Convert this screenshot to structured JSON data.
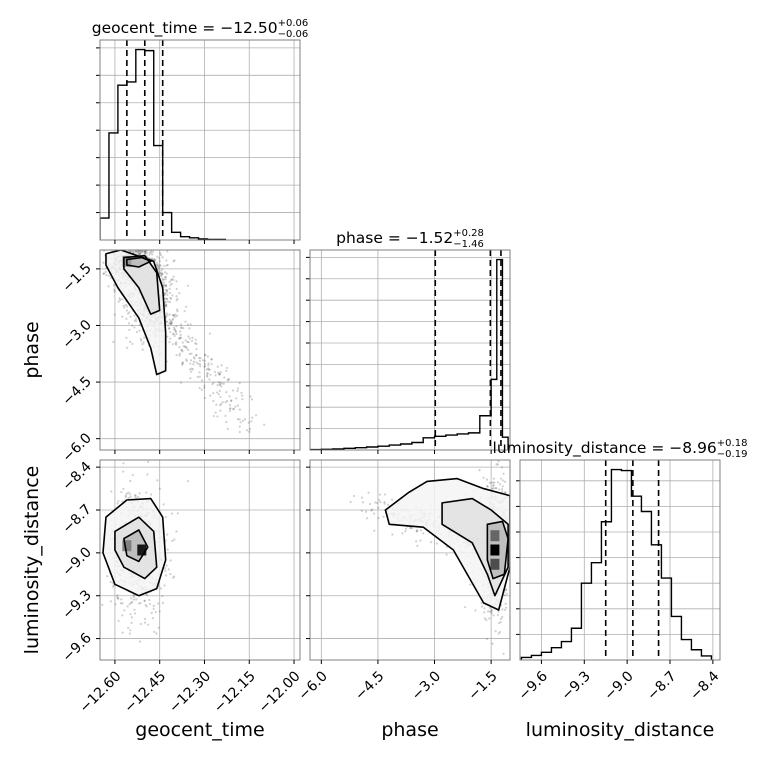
{
  "chart_data": {
    "type": "corner",
    "grid": true,
    "parameters": [
      {
        "name": "geocent_time",
        "median": "−12.50",
        "plus": "+0.06",
        "minus": "−0.06",
        "range": [
          -12.65,
          -11.98
        ],
        "ticks": [
          -12.6,
          -12.45,
          -12.3,
          -12.15,
          -12.0
        ],
        "tick_labels": [
          "−12.60",
          "−12.45",
          "−12.30",
          "−12.15",
          "−12.00"
        ],
        "quantiles": [
          -12.56,
          -12.5,
          -12.44
        ]
      },
      {
        "name": "phase",
        "median": "−1.52",
        "plus": "+0.28",
        "minus": "−1.46",
        "range": [
          -6.3,
          -1.0
        ],
        "ticks": [
          -6.0,
          -4.5,
          -3.0,
          -1.5
        ],
        "tick_labels": [
          "−6.0",
          "−4.5",
          "−3.0",
          "−1.5"
        ],
        "quantiles": [
          -2.98,
          -1.52,
          -1.24
        ]
      },
      {
        "name": "luminosity_distance",
        "median": "−8.96",
        "plus": "+0.18",
        "minus": "−0.19",
        "range": [
          -9.75,
          -8.35
        ],
        "ticks": [
          -9.6,
          -9.3,
          -9.0,
          -8.7,
          -8.4
        ],
        "tick_labels": [
          "−9.6",
          "−9.3",
          "−9.0",
          "−8.7",
          "−8.4"
        ],
        "quantiles": [
          -9.15,
          -8.96,
          -8.78
        ]
      }
    ],
    "histograms": [
      {
        "param": "geocent_time",
        "bin_edges": [
          -12.65,
          -12.62,
          -12.59,
          -12.56,
          -12.53,
          -12.5,
          -12.47,
          -12.44,
          -12.41,
          -12.38,
          -12.35,
          -12.32,
          -12.29,
          -12.26,
          -12.23
        ],
        "counts": [
          40,
          195,
          282,
          288,
          347,
          345,
          172,
          50,
          14,
          6,
          4,
          2,
          1,
          1
        ]
      },
      {
        "param": "phase",
        "bin_edges": [
          -6.3,
          -6.0,
          -5.7,
          -5.4,
          -5.1,
          -4.8,
          -4.5,
          -4.2,
          -3.9,
          -3.6,
          -3.3,
          -3.0,
          -2.7,
          -2.4,
          -2.1,
          -1.8,
          -1.5,
          -1.35,
          -1.2,
          -1.05
        ],
        "counts": [
          2,
          3,
          5,
          8,
          11,
          14,
          18,
          23,
          28,
          35,
          57,
          64,
          70,
          75,
          80,
          160,
          330,
          890,
          60
        ]
      },
      {
        "param": "luminosity_distance",
        "bin_edges": [
          -9.74,
          -9.67,
          -9.6,
          -9.53,
          -9.46,
          -9.39,
          -9.32,
          -9.25,
          -9.18,
          -9.11,
          -9.04,
          -8.97,
          -8.9,
          -8.83,
          -8.76,
          -8.69,
          -8.62,
          -8.55,
          -8.48,
          -8.41
        ],
        "counts": [
          5,
          9,
          15,
          24,
          36,
          62,
          150,
          190,
          270,
          372,
          370,
          320,
          290,
          225,
          160,
          85,
          40,
          20,
          8
        ]
      }
    ],
    "scatter_panels": [
      {
        "x": "geocent_time",
        "y": "phase",
        "density_cores": [
          {
            "x": -12.54,
            "y": -1.35,
            "sx": 0.03,
            "sy": 0.25
          },
          {
            "x": -12.48,
            "y": -2.2,
            "sx": 0.03,
            "sy": 0.45
          }
        ],
        "tail": {
          "start": [
            -12.48,
            -2.4
          ],
          "end": [
            -12.15,
            -5.7
          ],
          "spread_x": 0.03
        },
        "contours": [
          [
            [
              -12.63,
              -1.1
            ],
            [
              -12.58,
              -1.0
            ],
            [
              -12.47,
              -1.3
            ],
            [
              -12.44,
              -2.0
            ],
            [
              -12.43,
              -3.2
            ],
            [
              -12.43,
              -4.2
            ],
            [
              -12.46,
              -4.3
            ],
            [
              -12.48,
              -3.6
            ],
            [
              -12.52,
              -2.8
            ],
            [
              -12.59,
              -2.0
            ],
            [
              -12.63,
              -1.4
            ]
          ],
          [
            [
              -12.57,
              -1.2
            ],
            [
              -12.5,
              -1.15
            ],
            [
              -12.46,
              -1.6
            ],
            [
              -12.45,
              -2.6
            ],
            [
              -12.48,
              -2.7
            ],
            [
              -12.52,
              -2.0
            ],
            [
              -12.57,
              -1.5
            ]
          ],
          [
            [
              -12.56,
              -1.25
            ],
            [
              -12.51,
              -1.2
            ],
            [
              -12.48,
              -1.3
            ],
            [
              -12.52,
              -1.45
            ],
            [
              -12.56,
              -1.4
            ]
          ]
        ],
        "dark_cells": [
          [
            -12.56,
            -1.3,
            0.4
          ]
        ]
      },
      {
        "x": "geocent_time",
        "y": "luminosity_distance",
        "density_cores": [
          {
            "x": -12.52,
            "y": -8.98,
            "sx": 0.035,
            "sy": 0.17
          }
        ],
        "tail": null,
        "contours": [
          [
            [
              -12.63,
              -8.75
            ],
            [
              -12.56,
              -8.63
            ],
            [
              -12.48,
              -8.62
            ],
            [
              -12.44,
              -8.75
            ],
            [
              -12.43,
              -9.05
            ],
            [
              -12.46,
              -9.25
            ],
            [
              -12.52,
              -9.3
            ],
            [
              -12.6,
              -9.22
            ],
            [
              -12.64,
              -9.0
            ]
          ],
          [
            [
              -12.6,
              -8.85
            ],
            [
              -12.52,
              -8.75
            ],
            [
              -12.47,
              -8.85
            ],
            [
              -12.46,
              -9.1
            ],
            [
              -12.5,
              -9.18
            ],
            [
              -12.57,
              -9.1
            ],
            [
              -12.6,
              -8.98
            ]
          ],
          [
            [
              -12.57,
              -8.9
            ],
            [
              -12.52,
              -8.84
            ],
            [
              -12.49,
              -8.96
            ],
            [
              -12.52,
              -9.06
            ],
            [
              -12.56,
              -9.02
            ]
          ]
        ],
        "dark_cells": [
          [
            -12.51,
            -8.98,
            0.9
          ],
          [
            -12.56,
            -8.95,
            0.5
          ]
        ]
      },
      {
        "x": "phase",
        "y": "luminosity_distance",
        "density_cores": [
          {
            "x": -1.4,
            "y": -8.98,
            "sx": 0.2,
            "sy": 0.18
          }
        ],
        "tail": {
          "start": [
            -1.5,
            -8.95
          ],
          "end": [
            -4.9,
            -8.65
          ],
          "spread_x": 0.25
        },
        "contours": [
          [
            [
              -3.2,
              -8.5
            ],
            [
              -2.4,
              -8.48
            ],
            [
              -1.7,
              -8.55
            ],
            [
              -1.0,
              -8.6
            ],
            [
              -1.0,
              -9.1
            ],
            [
              -1.3,
              -9.4
            ],
            [
              -1.7,
              -9.35
            ],
            [
              -2.5,
              -8.98
            ],
            [
              -3.3,
              -8.82
            ],
            [
              -4.2,
              -8.8
            ],
            [
              -4.3,
              -8.7
            ],
            [
              -3.7,
              -8.58
            ]
          ],
          [
            [
              -2.8,
              -8.65
            ],
            [
              -2.0,
              -8.62
            ],
            [
              -1.5,
              -8.7
            ],
            [
              -1.05,
              -8.8
            ],
            [
              -1.05,
              -9.1
            ],
            [
              -1.4,
              -9.3
            ],
            [
              -1.6,
              -9.15
            ],
            [
              -2.0,
              -8.93
            ],
            [
              -2.8,
              -8.8
            ]
          ],
          [
            [
              -1.6,
              -8.8
            ],
            [
              -1.2,
              -8.78
            ],
            [
              -1.05,
              -8.9
            ],
            [
              -1.15,
              -9.15
            ],
            [
              -1.45,
              -9.18
            ],
            [
              -1.6,
              -9.05
            ]
          ]
        ],
        "dark_cells": [
          [
            -1.4,
            -8.98,
            1.0
          ],
          [
            -1.4,
            -9.08,
            0.7
          ],
          [
            -1.4,
            -8.88,
            0.6
          ]
        ]
      }
    ]
  }
}
